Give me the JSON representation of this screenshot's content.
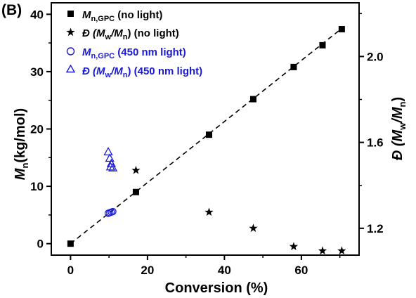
{
  "panel_label": "(B)",
  "chart_data": {
    "type": "scatter",
    "x": {
      "label": "Conversion (%)",
      "range": [
        -5,
        75
      ],
      "ticks": [
        0,
        20,
        40,
        60
      ]
    },
    "y_left": {
      "label_main": "M",
      "label_sub": "n",
      "label_rest": "(kg/mol)",
      "range": [
        -2,
        42
      ],
      "ticks": [
        0,
        10,
        20,
        30,
        40
      ]
    },
    "y_right": {
      "label": "Đ (M_w/M_n)",
      "range": [
        1.075,
        2.25
      ],
      "ticks": [
        1.2,
        1.6,
        2.0
      ]
    },
    "series": [
      {
        "name": "M_n,GPC (no light)",
        "legend": {
          "m": "M",
          "sub": "n,GPC",
          "rest": " (no light)"
        },
        "axis": "left",
        "marker": "square",
        "color": "#000000",
        "points": [
          [
            0,
            0
          ],
          [
            17,
            9
          ],
          [
            36,
            19
          ],
          [
            47.5,
            25.2
          ],
          [
            58,
            30.8
          ],
          [
            65.5,
            34.6
          ],
          [
            70.5,
            37.4
          ]
        ]
      },
      {
        "name": "Đ (M_w/M_n) (no light)",
        "legend": {
          "pre": "Đ (",
          "m1": "M",
          "s1": "w",
          "slash": "/",
          "m2": "M",
          "s2": "n",
          "rest": ") (no light)"
        },
        "axis": "right",
        "marker": "star",
        "color": "#000000",
        "points": [
          [
            17,
            1.47
          ],
          [
            36,
            1.275
          ],
          [
            47.5,
            1.2
          ],
          [
            58,
            1.115
          ],
          [
            65.5,
            1.095
          ],
          [
            70.5,
            1.095
          ]
        ]
      },
      {
        "name": "M_n,GPC (450 nm light)",
        "legend": {
          "m": "M",
          "sub": "n,GPC",
          "rest": " (450 nm light)"
        },
        "axis": "left",
        "marker": "circle-open",
        "color": "#1a1ad6",
        "points": [
          [
            9.8,
            5.3
          ],
          [
            10.2,
            5.4
          ],
          [
            10.6,
            5.5
          ],
          [
            11,
            5.6
          ]
        ]
      },
      {
        "name": "Đ (M_w/M_n) (450 nm light)",
        "legend": {
          "pre": "Đ (",
          "m1": "M",
          "s1": "w",
          "slash": "/",
          "m2": "M",
          "s2": "n",
          "rest": ") (450 nm light)"
        },
        "axis": "right",
        "marker": "triangle-open",
        "color": "#1a1ad6",
        "points": [
          [
            9.8,
            1.555
          ],
          [
            10.2,
            1.525
          ],
          [
            10.6,
            1.5
          ],
          [
            10.4,
            1.485
          ],
          [
            11,
            1.48
          ]
        ]
      }
    ],
    "fit_line": {
      "style": "dashed",
      "color": "#000000",
      "from": [
        0,
        0
      ],
      "to": [
        71,
        37.8
      ]
    },
    "grid": false,
    "legend_position": "top-left"
  }
}
